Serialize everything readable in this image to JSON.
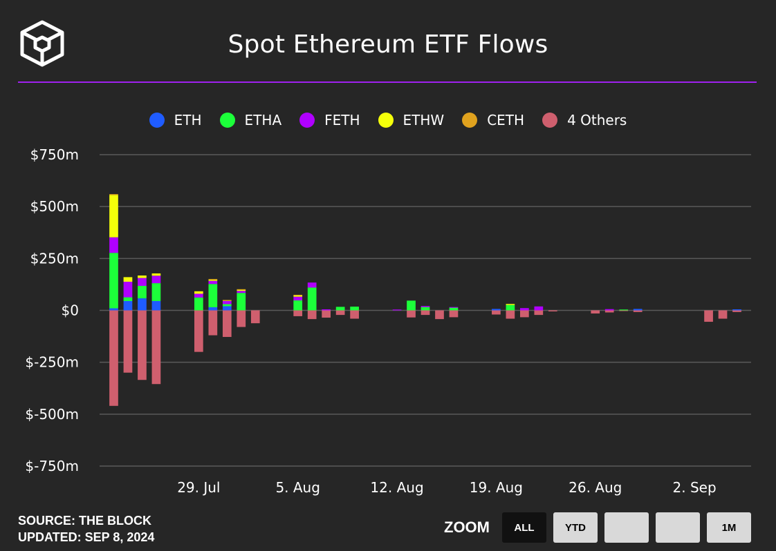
{
  "header": {
    "title": "Spot Ethereum ETF Flows"
  },
  "colors": {
    "accent_rule": "#a020f0",
    "background": "#262626",
    "grid": "#5a5a5a"
  },
  "legend": [
    {
      "label": "ETH",
      "color": "#1f5cff"
    },
    {
      "label": "ETHA",
      "color": "#1cff3a"
    },
    {
      "label": "FETH",
      "color": "#b000ff"
    },
    {
      "label": "ETHW",
      "color": "#f4ff0a"
    },
    {
      "label": "CETH",
      "color": "#e0a21e"
    },
    {
      "label": "4 Others",
      "color": "#cf5f6e"
    }
  ],
  "footer": {
    "source": "SOURCE: THE BLOCK",
    "updated": "UPDATED: SEP 8, 2024"
  },
  "zoom": {
    "label": "ZOOM",
    "buttons": [
      {
        "label": "ALL",
        "active": true
      },
      {
        "label": "YTD",
        "active": false
      },
      {
        "label": "",
        "active": false
      },
      {
        "label": "",
        "active": false
      },
      {
        "label": "1M",
        "active": false
      }
    ]
  },
  "chart_data": {
    "type": "bar",
    "stacked": true,
    "title": "Spot Ethereum ETF Flows",
    "ylim": [
      -750,
      750
    ],
    "yticks": [
      750,
      500,
      250,
      0,
      -250,
      -500,
      -750
    ],
    "ytick_labels": [
      "$750m",
      "$500m",
      "$250m",
      "$0",
      "$-250m",
      "$-500m",
      "$-750m"
    ],
    "xlim": [
      "2024-07-22",
      "2024-09-06"
    ],
    "xticks": [
      "2024-07-29",
      "2024-08-05",
      "2024-08-12",
      "2024-08-19",
      "2024-08-26",
      "2024-09-02"
    ],
    "xtick_labels": [
      "29. Jul",
      "5. Aug",
      "12. Aug",
      "19. Aug",
      "26. Aug",
      "2. Sep"
    ],
    "grid": true,
    "legend_position": "top",
    "dates": [
      "2024-07-23",
      "2024-07-24",
      "2024-07-25",
      "2024-07-26",
      "2024-07-29",
      "2024-07-30",
      "2024-07-31",
      "2024-08-01",
      "2024-08-02",
      "2024-08-05",
      "2024-08-06",
      "2024-08-07",
      "2024-08-08",
      "2024-08-09",
      "2024-08-12",
      "2024-08-13",
      "2024-08-14",
      "2024-08-15",
      "2024-08-16",
      "2024-08-19",
      "2024-08-20",
      "2024-08-21",
      "2024-08-22",
      "2024-08-23",
      "2024-08-26",
      "2024-08-27",
      "2024-08-28",
      "2024-08-29",
      "2024-09-03",
      "2024-09-04",
      "2024-09-05"
    ],
    "series": [
      {
        "name": "ETH",
        "values": [
          10,
          45,
          58,
          45,
          0,
          15,
          20,
          0,
          0,
          0,
          0,
          0,
          0,
          0,
          0,
          0,
          0,
          0,
          0,
          7,
          0,
          0,
          0,
          0,
          0,
          0,
          0,
          7,
          0,
          0,
          5
        ]
      },
      {
        "name": "ETHA",
        "values": [
          267,
          18,
          60,
          86,
          62,
          112,
          10,
          84,
          0,
          48,
          110,
          0,
          17,
          18,
          0,
          47,
          16,
          0,
          13,
          0,
          26,
          0,
          0,
          0,
          0,
          0,
          4,
          0,
          0,
          0,
          0
        ]
      },
      {
        "name": "FETH",
        "values": [
          75,
          75,
          38,
          36,
          18,
          15,
          15,
          10,
          0,
          18,
          24,
          5,
          0,
          0,
          4,
          0,
          5,
          0,
          3,
          0,
          0,
          11,
          19,
          0,
          0,
          6,
          0,
          0,
          0,
          0,
          0
        ]
      },
      {
        "name": "ETHW",
        "values": [
          204,
          22,
          12,
          11,
          12,
          5,
          0,
          5,
          0,
          6,
          0,
          0,
          0,
          0,
          0,
          0,
          0,
          0,
          0,
          0,
          5,
          0,
          0,
          0,
          0,
          0,
          0,
          0,
          0,
          0,
          0
        ]
      },
      {
        "name": "CETH",
        "values": [
          4,
          0,
          0,
          0,
          0,
          4,
          5,
          3,
          0,
          3,
          0,
          0,
          0,
          0,
          0,
          0,
          0,
          0,
          0,
          0,
          0,
          0,
          0,
          0,
          0,
          0,
          0,
          0,
          0,
          0,
          0
        ]
      },
      {
        "name": "4 Others",
        "values": [
          -460,
          -300,
          -335,
          -355,
          -200,
          -120,
          -128,
          -80,
          -62,
          -28,
          -42,
          -35,
          -22,
          -40,
          0,
          -34,
          -22,
          -42,
          -33,
          -20,
          -40,
          -33,
          -22,
          -5,
          -15,
          -10,
          -3,
          -8,
          -55,
          -40,
          -8
        ]
      }
    ]
  }
}
